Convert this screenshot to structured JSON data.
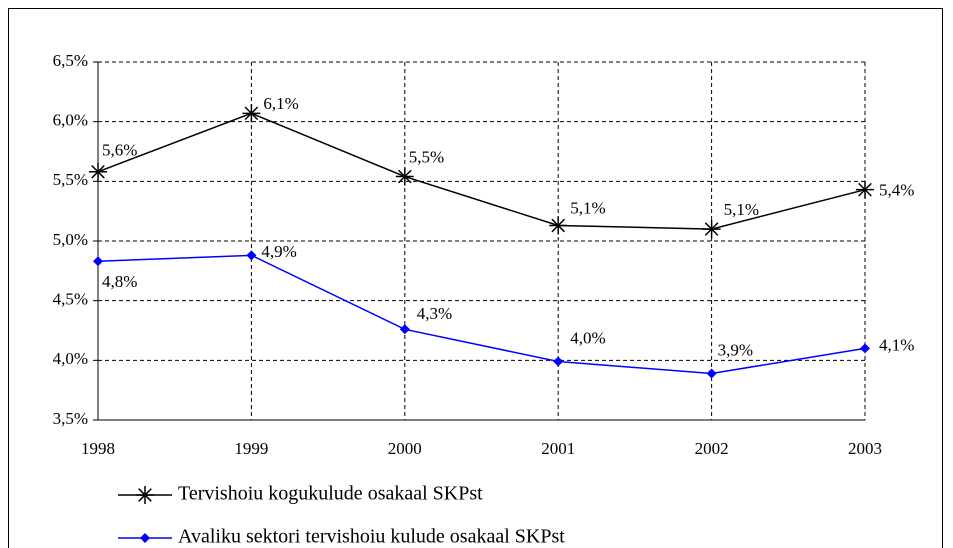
{
  "chart_data": {
    "type": "line",
    "categories": [
      "1998",
      "1999",
      "2000",
      "2001",
      "2002",
      "2003"
    ],
    "series": [
      {
        "name": "Tervishoiu kogukulude osakaal SKPst",
        "color": "#000000",
        "marker": "star",
        "values": [
          5.58,
          6.07,
          5.54,
          5.13,
          5.1,
          5.43
        ],
        "value_labels": [
          "5,6%",
          "6,1%",
          "5,5%",
          "5,1%",
          "5,1%",
          "5,4%"
        ]
      },
      {
        "name": "Avaliku sektori tervishoiu kulude osakaal SKPst",
        "color": "#0000ff",
        "marker": "diamond",
        "values": [
          4.83,
          4.88,
          4.26,
          3.99,
          3.89,
          4.1
        ],
        "value_labels": [
          "4,8%",
          "4,9%",
          "4,3%",
          "4,0%",
          "3,9%",
          "4,1%"
        ]
      }
    ],
    "ylim": [
      3.5,
      6.5
    ],
    "yticks": [
      {
        "value": 3.5,
        "label": "3,5%"
      },
      {
        "value": 4.0,
        "label": "4,0%"
      },
      {
        "value": 4.5,
        "label": "4,5%"
      },
      {
        "value": 5.0,
        "label": "5,0%"
      },
      {
        "value": 5.5,
        "label": "5,5%"
      },
      {
        "value": 6.0,
        "label": "6,0%"
      },
      {
        "value": 6.5,
        "label": "6,5%"
      }
    ],
    "grid": true,
    "legend": "bottom"
  }
}
